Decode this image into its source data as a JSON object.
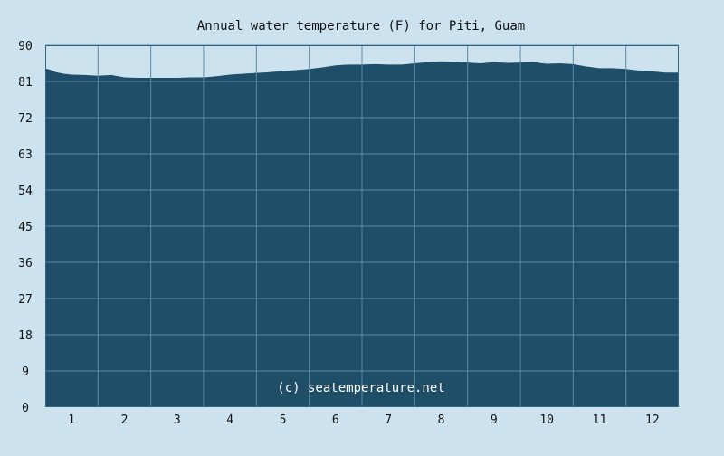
{
  "chart_data": {
    "type": "area",
    "title": "Annual water temperature (F) for Piti, Guam",
    "xlabel": "",
    "ylabel": "",
    "ylim": [
      0,
      90
    ],
    "yticks": [
      "0",
      "9",
      "18",
      "27",
      "36",
      "45",
      "54",
      "63",
      "72",
      "81",
      "90"
    ],
    "xlim": [
      0.5,
      12.5
    ],
    "xticks": [
      "1",
      "2",
      "3",
      "4",
      "5",
      "6",
      "7",
      "8",
      "9",
      "10",
      "11",
      "12"
    ],
    "grid": true,
    "watermark": "(c) seatemperature.net",
    "x": [
      0.5,
      0.6,
      0.7,
      0.85,
      1.0,
      1.25,
      1.5,
      1.75,
      2.0,
      2.25,
      2.5,
      2.75,
      3.0,
      3.25,
      3.5,
      3.75,
      4.0,
      4.25,
      4.5,
      4.75,
      5.0,
      5.25,
      5.5,
      5.75,
      6.0,
      6.25,
      6.5,
      6.75,
      7.0,
      7.25,
      7.5,
      7.75,
      8.0,
      8.25,
      8.5,
      8.75,
      9.0,
      9.25,
      9.5,
      9.75,
      10.0,
      10.25,
      10.5,
      10.75,
      11.0,
      11.25,
      11.5,
      11.75,
      12.0,
      12.25,
      12.5
    ],
    "values": [
      84.2,
      83.9,
      83.3,
      82.9,
      82.7,
      82.6,
      82.4,
      82.6,
      82.0,
      81.9,
      81.9,
      81.9,
      81.9,
      82.0,
      82.0,
      82.3,
      82.7,
      82.9,
      83.1,
      83.3,
      83.6,
      83.8,
      84.1,
      84.5,
      85.0,
      85.2,
      85.2,
      85.3,
      85.2,
      85.2,
      85.5,
      85.8,
      86.0,
      85.9,
      85.7,
      85.5,
      85.8,
      85.6,
      85.7,
      85.8,
      85.4,
      85.5,
      85.3,
      84.7,
      84.3,
      84.3,
      84.1,
      83.7,
      83.5,
      83.2,
      83.2
    ],
    "colors": {
      "background": "#cce3ef",
      "fill": "#1f4e68",
      "grid": "#5a8aa4",
      "axis": "#33657f",
      "text": "#111111",
      "watermark": "#ffffff"
    }
  }
}
